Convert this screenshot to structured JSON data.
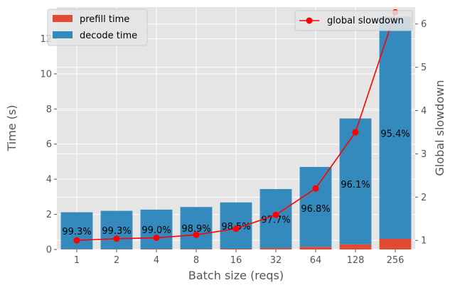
{
  "chart_data": {
    "type": "bar",
    "title": "",
    "xlabel": "Batch size (reqs)",
    "ylabel": "Time (s)",
    "y2label": "Global slowdown",
    "categories": [
      "1",
      "2",
      "4",
      "8",
      "16",
      "32",
      "64",
      "128",
      "256"
    ],
    "stacked": true,
    "series": [
      {
        "name": "prefill time",
        "color": "#E24A33",
        "values": [
          0.015,
          0.016,
          0.023,
          0.027,
          0.041,
          0.079,
          0.151,
          0.291,
          0.61
        ]
      },
      {
        "name": "decode time",
        "color": "#348ABD",
        "values": [
          2.105,
          2.184,
          2.247,
          2.393,
          2.639,
          3.361,
          4.549,
          7.169,
          12.64
        ]
      }
    ],
    "percent_labels": [
      "99.3%",
      "99.3%",
      "99.0%",
      "98.9%",
      "98.5%",
      "97.7%",
      "96.8%",
      "96.1%",
      "95.4%"
    ],
    "line_series": {
      "name": "global slowdown",
      "color": "#FF0000",
      "axis": "right",
      "values": [
        1.0,
        1.04,
        1.06,
        1.13,
        1.27,
        1.59,
        2.2,
        3.5,
        6.27
      ]
    },
    "ylim": [
      0,
      13.8
    ],
    "y2lim": [
      0.79,
      6.39
    ],
    "yticks": [
      0,
      2,
      4,
      6,
      8,
      10,
      12
    ],
    "y2ticks": [
      1,
      2,
      3,
      4,
      5,
      6
    ],
    "grid": true,
    "legend_left": "upper-left",
    "legend_right": "upper-right"
  }
}
